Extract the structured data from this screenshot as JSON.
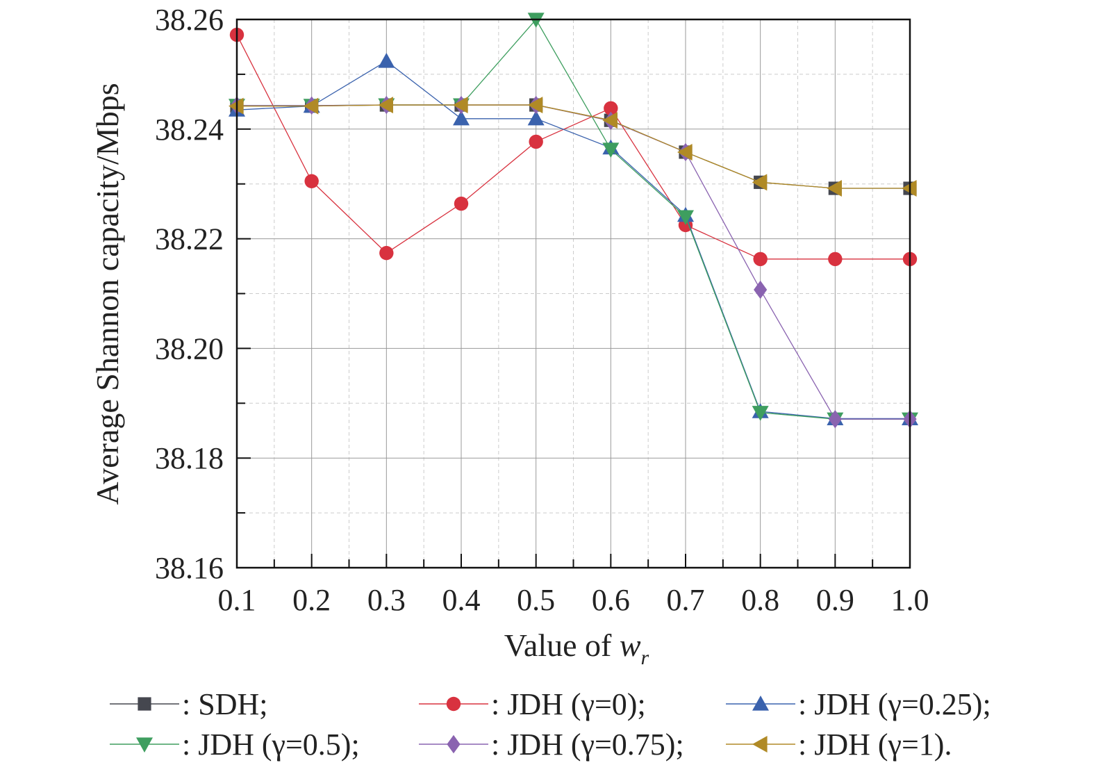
{
  "chart_data": {
    "type": "line",
    "ylabel": "Average Shannon capacity/Mbps",
    "xlabel_text": "Value of ",
    "xlabel_var": "w",
    "xlabel_sub": "r",
    "x": [
      0.1,
      0.2,
      0.3,
      0.4,
      0.5,
      0.6,
      0.7,
      0.8,
      0.9,
      1.0
    ],
    "x_tick_labels": [
      "0.1",
      "0.2",
      "0.3",
      "0.4",
      "0.5",
      "0.6",
      "0.7",
      "0.8",
      "0.9",
      "1.0"
    ],
    "y_tick_labels": [
      "38.16",
      "38.18",
      "38.20",
      "38.22",
      "38.24",
      "38.26"
    ],
    "xlim": [
      0.1,
      1.0
    ],
    "ylim": [
      38.16,
      38.26
    ],
    "grid": true,
    "legend_placement": "bottom",
    "series": [
      {
        "name": ": SDH;",
        "color": "#45474f",
        "marker": "square",
        "values": [
          38.2442,
          38.2442,
          38.2444,
          38.2444,
          38.2444,
          38.2416,
          38.2358,
          38.2303,
          38.2292,
          38.2292
        ]
      },
      {
        "name": ": JDH (γ=0);",
        "color": "#d8323f",
        "marker": "circle",
        "values": [
          38.2572,
          38.2305,
          38.2174,
          38.2264,
          38.2377,
          38.2438,
          38.2225,
          38.2163,
          38.2163,
          38.2163
        ]
      },
      {
        "name": ": JDH (γ=0.25);",
        "color": "#3a62ad",
        "marker": "triangle-up",
        "values": [
          38.2435,
          38.2442,
          38.2524,
          38.2419,
          38.2419,
          38.2366,
          38.2243,
          38.1885,
          38.1872,
          38.1872
        ]
      },
      {
        "name": ": JDH (γ=0.5);",
        "color": "#3e9e5f",
        "marker": "triangle-down",
        "values": [
          38.2443,
          38.2443,
          38.2444,
          38.2444,
          38.26,
          38.2363,
          38.224,
          38.1883,
          38.1871,
          38.1871
        ]
      },
      {
        "name": ": JDH (γ=0.75);",
        "color": "#8a63b0",
        "marker": "diamond",
        "values": [
          38.2443,
          38.2443,
          38.2444,
          38.2444,
          38.2444,
          38.2415,
          38.2358,
          38.2107,
          38.1871,
          38.1871
        ]
      },
      {
        "name": ": JDH (γ=1).",
        "color": "#b08a26",
        "marker": "triangle-left",
        "values": [
          38.2442,
          38.2442,
          38.2444,
          38.2444,
          38.2444,
          38.2416,
          38.2358,
          38.2303,
          38.2292,
          38.2292
        ]
      }
    ]
  }
}
